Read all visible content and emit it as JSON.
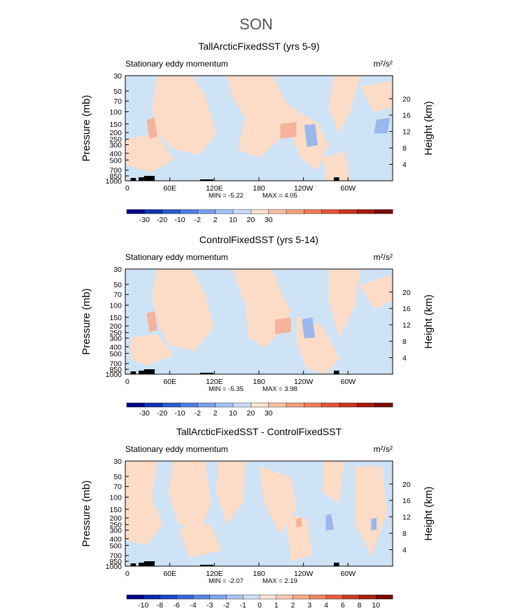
{
  "figure_title": "SON",
  "colors": {
    "pos_light": "#fcdcc6",
    "neg_light": "#cfe3f7",
    "pos_mid": "#f5b49a",
    "neg_mid": "#9ab7ee",
    "topography": "#000000"
  },
  "chart_data": [
    {
      "type": "heatmap",
      "title": "TallArcticFixedSST (yrs 5-9)",
      "subtitle_left": "Stationary eddy momentum",
      "units": "m²/s²",
      "ylabel": "Pressure (mb)",
      "ylabel_right": "Height (km)",
      "x_ticks": [
        "0",
        "60E",
        "120E",
        "180",
        "120W",
        "60W"
      ],
      "y_ticks": [
        "30",
        "50",
        "70",
        "100",
        "150",
        "200",
        "250",
        "300",
        "400",
        "500",
        "700",
        "850",
        "1000"
      ],
      "y_ticks_right": [
        "20",
        "16",
        "12",
        "8",
        "4"
      ],
      "stats": {
        "min": -5.22,
        "max": 4.05,
        "min_label": "MIN =   -5.22",
        "max_label": "MAX =    4.05"
      },
      "colorbar_labels": [
        "-30",
        "-20",
        "-10",
        "-2",
        "2",
        "10",
        "20",
        "30"
      ],
      "colorbar_colors": [
        "#00008c",
        "#1035b0",
        "#2a5bd0",
        "#4d7fe2",
        "#7aa2ee",
        "#a3c2f4",
        "#c9dcf8",
        "#fce3d2",
        "#f8c3a6",
        "#f2a07e",
        "#ee7d5c",
        "#e45637",
        "#cc3320",
        "#a61a10",
        "#7a0c08"
      ]
    },
    {
      "type": "heatmap",
      "title": "ControlFixedSST (yrs 5-14)",
      "subtitle_left": "Stationary eddy momentum",
      "units": "m²/s²",
      "ylabel": "Pressure (mb)",
      "ylabel_right": "Height (km)",
      "x_ticks": [
        "0",
        "60E",
        "120E",
        "180",
        "120W",
        "60W"
      ],
      "y_ticks": [
        "30",
        "50",
        "70",
        "100",
        "150",
        "200",
        "250",
        "300",
        "400",
        "500",
        "700",
        "850",
        "1000"
      ],
      "y_ticks_right": [
        "20",
        "16",
        "12",
        "8",
        "4"
      ],
      "stats": {
        "min": -5.35,
        "max": 3.98,
        "min_label": "MIN =   -5.35",
        "max_label": "MAX =    3.98"
      },
      "colorbar_labels": [
        "-30",
        "-20",
        "-10",
        "-2",
        "2",
        "10",
        "20",
        "30"
      ],
      "colorbar_colors": [
        "#00008c",
        "#1035b0",
        "#2a5bd0",
        "#4d7fe2",
        "#7aa2ee",
        "#a3c2f4",
        "#c9dcf8",
        "#fce3d2",
        "#f8c3a6",
        "#f2a07e",
        "#ee7d5c",
        "#e45637",
        "#cc3320",
        "#a61a10",
        "#7a0c08"
      ]
    },
    {
      "type": "heatmap",
      "title": "TallArcticFixedSST - ControlFixedSST",
      "subtitle_left": "Stationary eddy momentum",
      "units": "m²/s²",
      "ylabel": "Pressure (mb)",
      "ylabel_right": "Height (km)",
      "x_ticks": [
        "0",
        "60E",
        "120E",
        "180",
        "120W",
        "60W"
      ],
      "y_ticks": [
        "30",
        "50",
        "70",
        "100",
        "150",
        "200",
        "250",
        "300",
        "400",
        "500",
        "700",
        "850",
        "1000"
      ],
      "y_ticks_right": [
        "20",
        "16",
        "12",
        "8",
        "4"
      ],
      "stats": {
        "min": -2.07,
        "max": 2.19,
        "min_label": "MIN =   -2.07",
        "max_label": "MAX =    2.19"
      },
      "colorbar_labels": [
        "-10",
        "-8",
        "-6",
        "-4",
        "-3",
        "-2",
        "-1",
        "0",
        "1",
        "2",
        "3",
        "4",
        "6",
        "8",
        "10"
      ],
      "colorbar_colors": [
        "#00008c",
        "#0d2aa6",
        "#1f47c2",
        "#3a66d8",
        "#5a85e6",
        "#7fa4ef",
        "#a8c5f5",
        "#cfe1f9",
        "#fde6d6",
        "#f9cbb0",
        "#f4ab87",
        "#ee8862",
        "#e45f3c",
        "#cc3a24",
        "#a61f12",
        "#7a0c08"
      ]
    }
  ]
}
